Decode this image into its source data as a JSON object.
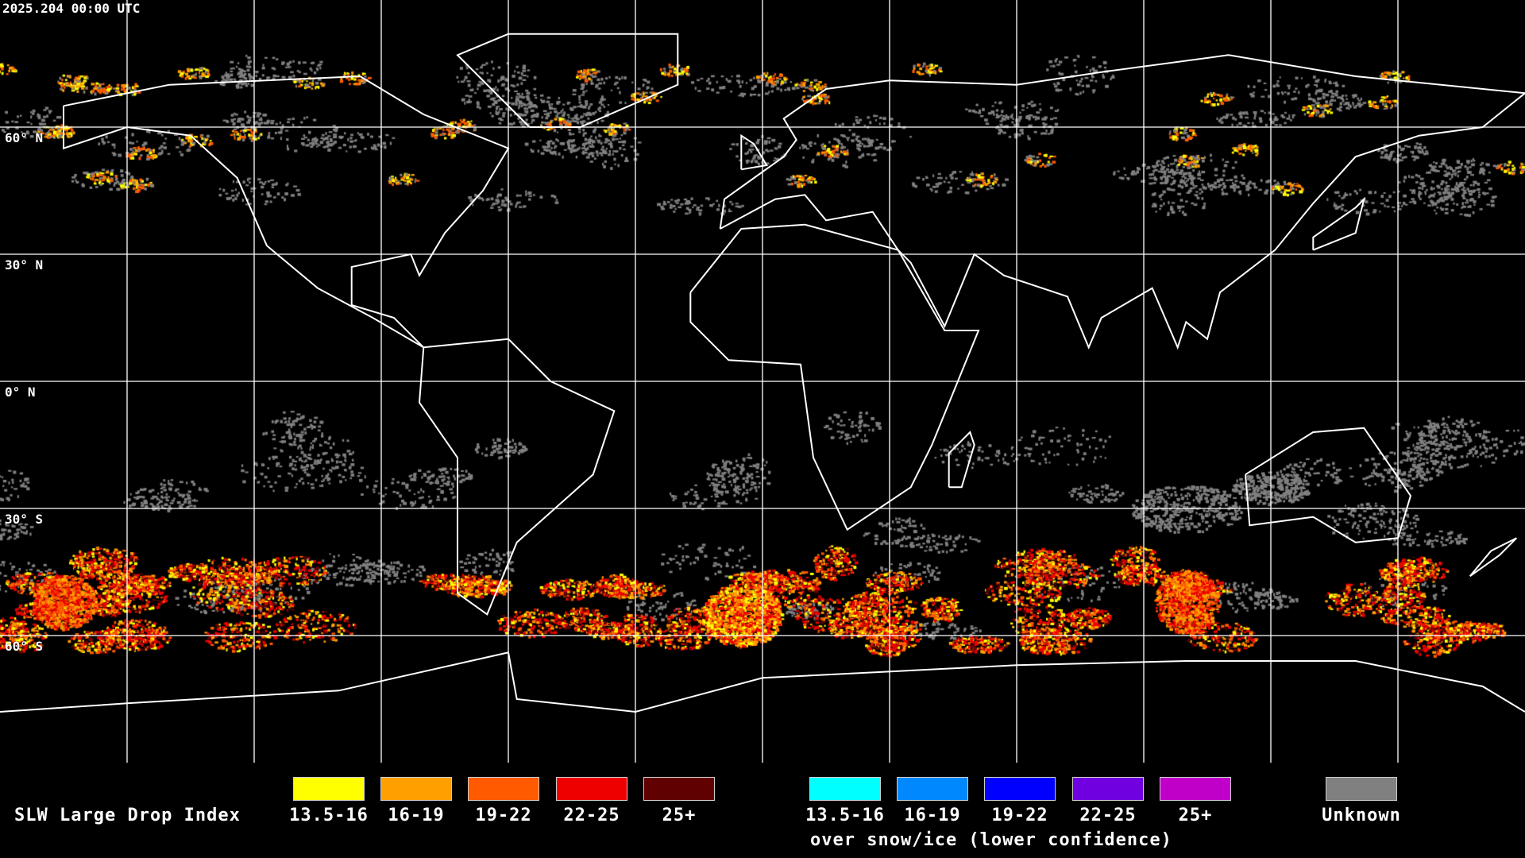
{
  "timestamp": "2025.204 00:00 UTC",
  "lat_labels": [
    "60° N",
    "30° N",
    "0° N",
    "30° S",
    "60° S"
  ],
  "legend": {
    "title": "SLW Large Drop Index",
    "main": [
      {
        "label": "13.5-16",
        "color": "#ffff00"
      },
      {
        "label": "16-19",
        "color": "#ffa000"
      },
      {
        "label": "19-22",
        "color": "#ff5a00"
      },
      {
        "label": "22-25",
        "color": "#ee0000"
      },
      {
        "label": "25+",
        "color": "#600000"
      }
    ],
    "snow": [
      {
        "label": "13.5-16",
        "color": "#00ffff"
      },
      {
        "label": "16-19",
        "color": "#0088ff"
      },
      {
        "label": "19-22",
        "color": "#0000ff"
      },
      {
        "label": "22-25",
        "color": "#7000e0"
      },
      {
        "label": "25+",
        "color": "#c000c8"
      }
    ],
    "snow_caption": "over snow/ice (lower confidence)",
    "unknown": {
      "label": "Unknown",
      "color": "#808080"
    }
  },
  "map": {
    "projection": "equirectangular",
    "grid_spacing_deg": 30,
    "grid_color": "#ffffff",
    "coast_color": "#ffffff",
    "background": "#000000"
  }
}
